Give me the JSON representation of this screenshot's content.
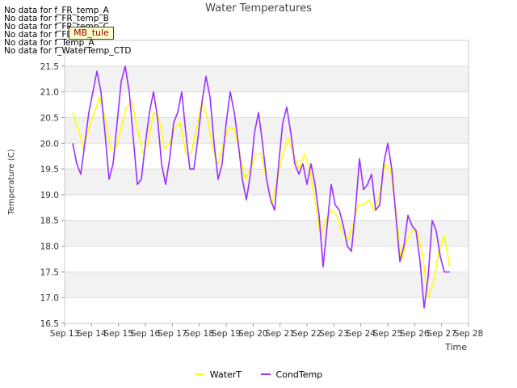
{
  "no_data_messages": [
    "No data for f_FR_temp_A",
    "No data for f_FR_temp_B",
    "No data for f_FR_temp_C",
    "No data for f_FD_Temp_1",
    "No data for f_Temp_A",
    "No data for f_WaterTemp_CTD"
  ],
  "tooltip_label": "MB_tule",
  "chart_data": {
    "type": "line",
    "title": "Water Temperatures",
    "xlabel": "Time",
    "ylabel": "Temperature (C)",
    "ylim": [
      16.5,
      22.0
    ],
    "xlim": [
      13,
      28
    ],
    "x_ticks": [
      13,
      14,
      15,
      16,
      17,
      18,
      19,
      20,
      21,
      22,
      23,
      24,
      25,
      26,
      27,
      28
    ],
    "x_tick_labels": [
      "Sep 13",
      "Sep 14",
      "Sep 15",
      "Sep 16",
      "Sep 17",
      "Sep 18",
      "Sep 19",
      "Sep 20",
      "Sep 21",
      "Sep 22",
      "Sep 23",
      "Sep 24",
      "Sep 25",
      "Sep 26",
      "Sep 27",
      "Sep 28"
    ],
    "y_ticks": [
      16.5,
      17.0,
      17.5,
      18.0,
      18.5,
      19.0,
      19.5,
      20.0,
      20.5,
      21.0,
      21.5
    ],
    "y_tick_labels": [
      "16.5",
      "17.0",
      "17.5",
      "18.0",
      "18.5",
      "19.0",
      "19.5",
      "20.0",
      "20.5",
      "21.0",
      "21.5"
    ],
    "grid": true,
    "legend_position": "bottom",
    "series": [
      {
        "name": "WaterT",
        "color": "#ffff00",
        "x": [
          13.3,
          13.5,
          13.7,
          13.9,
          14.1,
          14.3,
          14.5,
          14.7,
          14.9,
          15.1,
          15.3,
          15.5,
          15.7,
          15.9,
          16.1,
          16.3,
          16.5,
          16.7,
          16.9,
          17.1,
          17.3,
          17.5,
          17.7,
          17.9,
          18.1,
          18.3,
          18.5,
          18.7,
          18.9,
          19.1,
          19.3,
          19.5,
          19.7,
          19.9,
          20.1,
          20.3,
          20.5,
          20.7,
          20.9,
          21.1,
          21.3,
          21.5,
          21.7,
          21.9,
          22.1,
          22.3,
          22.5,
          22.7,
          22.9,
          23.1,
          23.3,
          23.5,
          23.7,
          23.9,
          24.1,
          24.3,
          24.5,
          24.7,
          24.9,
          25.1,
          25.3,
          25.5,
          25.7,
          25.9,
          26.1,
          26.3,
          26.5,
          26.7,
          26.9,
          27.1,
          27.3
        ],
        "y": [
          20.6,
          20.3,
          19.9,
          20.3,
          20.6,
          20.9,
          20.5,
          19.9,
          19.9,
          20.3,
          20.7,
          20.8,
          20.3,
          19.8,
          20.0,
          20.6,
          20.5,
          19.9,
          20.0,
          20.3,
          20.4,
          19.8,
          19.8,
          20.3,
          20.8,
          20.5,
          19.9,
          19.6,
          20.0,
          20.3,
          20.3,
          19.8,
          19.3,
          19.5,
          19.8,
          19.8,
          19.3,
          18.8,
          19.3,
          19.8,
          20.1,
          19.8,
          19.5,
          19.8,
          19.5,
          18.9,
          18.2,
          18.5,
          18.7,
          18.6,
          18.3,
          18.1,
          18.4,
          18.8,
          18.8,
          18.9,
          18.7,
          19.0,
          19.6,
          19.5,
          18.7,
          17.7,
          18.1,
          18.3,
          18.3,
          17.8,
          17.0,
          17.3,
          17.9,
          18.2,
          17.6
        ]
      },
      {
        "name": "CondTemp",
        "color": "#9b30ff",
        "x": [
          13.3,
          13.45,
          13.6,
          13.75,
          13.9,
          14.05,
          14.2,
          14.35,
          14.5,
          14.65,
          14.8,
          14.95,
          15.1,
          15.25,
          15.4,
          15.55,
          15.7,
          15.85,
          16.0,
          16.15,
          16.3,
          16.45,
          16.6,
          16.75,
          16.9,
          17.05,
          17.2,
          17.35,
          17.5,
          17.65,
          17.8,
          17.95,
          18.1,
          18.25,
          18.4,
          18.55,
          18.7,
          18.85,
          19.0,
          19.15,
          19.3,
          19.45,
          19.6,
          19.75,
          19.9,
          20.05,
          20.2,
          20.35,
          20.5,
          20.65,
          20.8,
          20.95,
          21.1,
          21.25,
          21.4,
          21.55,
          21.7,
          21.85,
          22.0,
          22.15,
          22.3,
          22.45,
          22.6,
          22.75,
          22.9,
          23.05,
          23.2,
          23.35,
          23.5,
          23.65,
          23.8,
          23.95,
          24.1,
          24.25,
          24.4,
          24.55,
          24.7,
          24.85,
          25.0,
          25.15,
          25.3,
          25.45,
          25.6,
          25.75,
          25.9,
          26.05,
          26.2,
          26.35,
          26.5,
          26.65,
          26.8,
          26.95,
          27.1,
          27.3
        ],
        "y": [
          20.0,
          19.6,
          19.4,
          20.0,
          20.6,
          21.0,
          21.4,
          21.0,
          20.2,
          19.3,
          19.6,
          20.4,
          21.2,
          21.5,
          21.0,
          20.1,
          19.2,
          19.3,
          20.0,
          20.6,
          21.0,
          20.5,
          19.6,
          19.2,
          19.7,
          20.4,
          20.6,
          21.0,
          20.2,
          19.5,
          19.5,
          20.1,
          20.8,
          21.3,
          20.9,
          20.0,
          19.3,
          19.6,
          20.4,
          21.0,
          20.6,
          20.0,
          19.3,
          18.9,
          19.4,
          20.2,
          20.6,
          20.0,
          19.3,
          18.9,
          18.7,
          19.6,
          20.4,
          20.7,
          20.2,
          19.6,
          19.4,
          19.6,
          19.2,
          19.6,
          19.2,
          18.6,
          17.6,
          18.4,
          19.2,
          18.8,
          18.7,
          18.4,
          18.0,
          17.9,
          18.7,
          19.7,
          19.1,
          19.2,
          19.4,
          18.7,
          18.8,
          19.6,
          20.0,
          19.5,
          18.6,
          17.7,
          18.0,
          18.6,
          18.4,
          18.3,
          17.7,
          16.8,
          17.4,
          18.5,
          18.3,
          17.8,
          17.5,
          17.5
        ]
      }
    ]
  }
}
